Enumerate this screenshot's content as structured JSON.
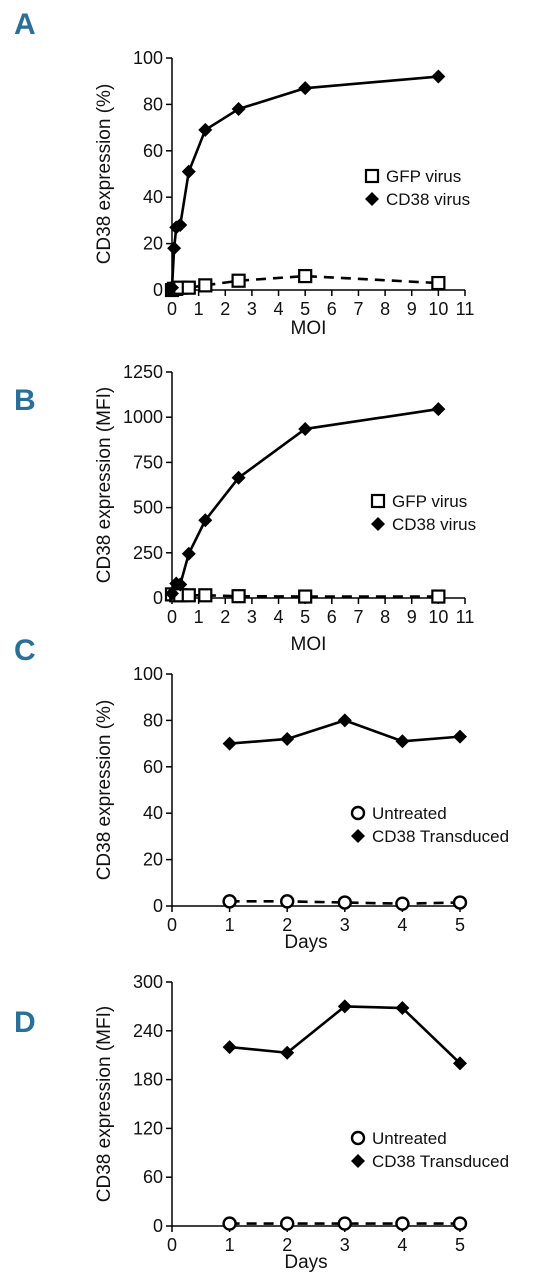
{
  "chart_data": [
    {
      "panel": "A",
      "type": "line",
      "xlabel": "MOI",
      "ylabel": "CD38 expression (%)",
      "xlim": [
        0,
        11
      ],
      "ylim": [
        0,
        100
      ],
      "xticks": [
        0,
        1,
        2,
        3,
        4,
        5,
        6,
        7,
        8,
        9,
        10,
        11
      ],
      "yticks": [
        0,
        20,
        40,
        60,
        80,
        100
      ],
      "series": [
        {
          "name": "GFP virus",
          "marker": "square-open",
          "dash": true,
          "x": [
            0,
            0.08,
            0.16,
            0.31,
            0.63,
            1.25,
            2.5,
            5,
            10
          ],
          "y": [
            0,
            0.5,
            0.5,
            1,
            1,
            2,
            4,
            6,
            3
          ]
        },
        {
          "name": "CD38 virus",
          "marker": "diamond-filled",
          "dash": false,
          "x": [
            0,
            0.08,
            0.16,
            0.31,
            0.63,
            1.25,
            2.5,
            5,
            10
          ],
          "y": [
            1,
            18,
            27,
            28,
            51,
            69,
            78,
            87,
            92
          ]
        }
      ],
      "legend": "right"
    },
    {
      "panel": "B",
      "type": "line",
      "xlabel": "MOI",
      "ylabel": "CD38 expression (MFI)",
      "xlim": [
        0,
        11
      ],
      "ylim": [
        0,
        1250
      ],
      "xticks": [
        0,
        1,
        2,
        3,
        4,
        5,
        6,
        7,
        8,
        9,
        10,
        11
      ],
      "yticks": [
        0,
        250,
        500,
        750,
        1000,
        1250
      ],
      "series": [
        {
          "name": "GFP virus",
          "marker": "square-open",
          "dash": true,
          "x": [
            0,
            0.16,
            0.31,
            0.63,
            1.25,
            2.5,
            5,
            10
          ],
          "y": [
            20,
            15,
            15,
            15,
            15,
            10,
            8,
            8
          ]
        },
        {
          "name": "CD38 virus",
          "marker": "diamond-filled",
          "dash": false,
          "x": [
            0,
            0.16,
            0.31,
            0.63,
            1.25,
            2.5,
            5,
            10
          ],
          "y": [
            25,
            80,
            75,
            245,
            430,
            665,
            935,
            1045
          ]
        }
      ],
      "legend": "right"
    },
    {
      "panel": "C",
      "type": "line",
      "xlabel": "Days",
      "ylabel": "CD38 expression (%)",
      "xlim": [
        0,
        5
      ],
      "ylim": [
        0,
        100
      ],
      "xticks": [
        0,
        1,
        2,
        3,
        4,
        5
      ],
      "yticks": [
        0,
        20,
        40,
        60,
        80,
        100
      ],
      "series": [
        {
          "name": "Untreated",
          "marker": "circle-open",
          "dash": true,
          "x": [
            1,
            2,
            3,
            4,
            5
          ],
          "y": [
            2,
            2,
            1.5,
            1,
            1.5
          ]
        },
        {
          "name": "CD38 Transduced",
          "marker": "diamond-filled",
          "dash": false,
          "x": [
            1,
            2,
            3,
            4,
            5
          ],
          "y": [
            70,
            72,
            80,
            71,
            73
          ]
        }
      ],
      "legend": "right"
    },
    {
      "panel": "D",
      "type": "line",
      "xlabel": "Days",
      "ylabel": "CD38 expression (MFI)",
      "xlim": [
        0,
        5
      ],
      "ylim": [
        0,
        300
      ],
      "xticks": [
        0,
        1,
        2,
        3,
        4,
        5
      ],
      "yticks": [
        0,
        60,
        120,
        180,
        240,
        300
      ],
      "series": [
        {
          "name": "Untreated",
          "marker": "circle-open",
          "dash": true,
          "x": [
            1,
            2,
            3,
            4,
            5
          ],
          "y": [
            3,
            3,
            3,
            3,
            3
          ]
        },
        {
          "name": "CD38 Transduced",
          "marker": "diamond-filled",
          "dash": false,
          "x": [
            1,
            2,
            3,
            4,
            5
          ],
          "y": [
            220,
            213,
            270,
            268,
            200
          ]
        }
      ],
      "legend": "right"
    }
  ]
}
